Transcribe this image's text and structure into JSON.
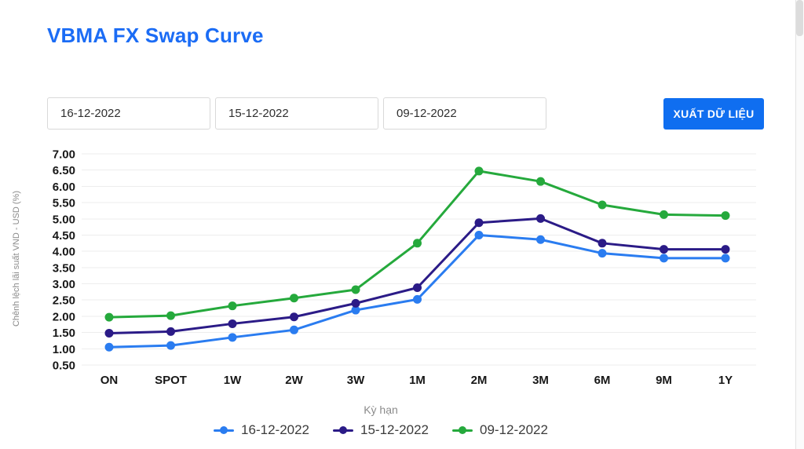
{
  "header": {
    "title": "VBMA FX Swap Curve"
  },
  "controls": {
    "dates": [
      {
        "value": "16-12-2022"
      },
      {
        "value": "15-12-2022"
      },
      {
        "value": "09-12-2022"
      }
    ],
    "export_label": "XUẤT DỮ LIỆU"
  },
  "chart_data": {
    "type": "line",
    "xlabel": "Kỳ hạn",
    "ylabel": "Chênh lệch lãi suất VND - USD (%)",
    "categories": [
      "ON",
      "SPOT",
      "1W",
      "2W",
      "3W",
      "1M",
      "2M",
      "3M",
      "6M",
      "9M",
      "1Y"
    ],
    "series": [
      {
        "name": "16-12-2022",
        "color": "#2a7cf0",
        "values": [
          1.05,
          1.1,
          1.35,
          1.58,
          2.19,
          2.52,
          4.5,
          4.36,
          3.94,
          3.79,
          3.79
        ]
      },
      {
        "name": "15-12-2022",
        "color": "#2b1b87",
        "values": [
          1.48,
          1.53,
          1.77,
          1.98,
          2.4,
          2.88,
          4.88,
          5.01,
          4.25,
          4.06,
          4.06
        ]
      },
      {
        "name": "09-12-2022",
        "color": "#25a93c",
        "values": [
          1.97,
          2.02,
          2.32,
          2.56,
          2.82,
          4.25,
          6.47,
          6.15,
          5.43,
          5.13,
          5.1
        ]
      }
    ],
    "ylim": [
      0.5,
      7.0
    ],
    "ytick_step": 0.5,
    "grid": true,
    "legend_position": "bottom"
  },
  "colors": {
    "title": "#1b6cf5",
    "button": "#0f6ef0",
    "grid": "#ededed",
    "axis_text": "#171717",
    "muted_text": "#8b8b8b"
  }
}
